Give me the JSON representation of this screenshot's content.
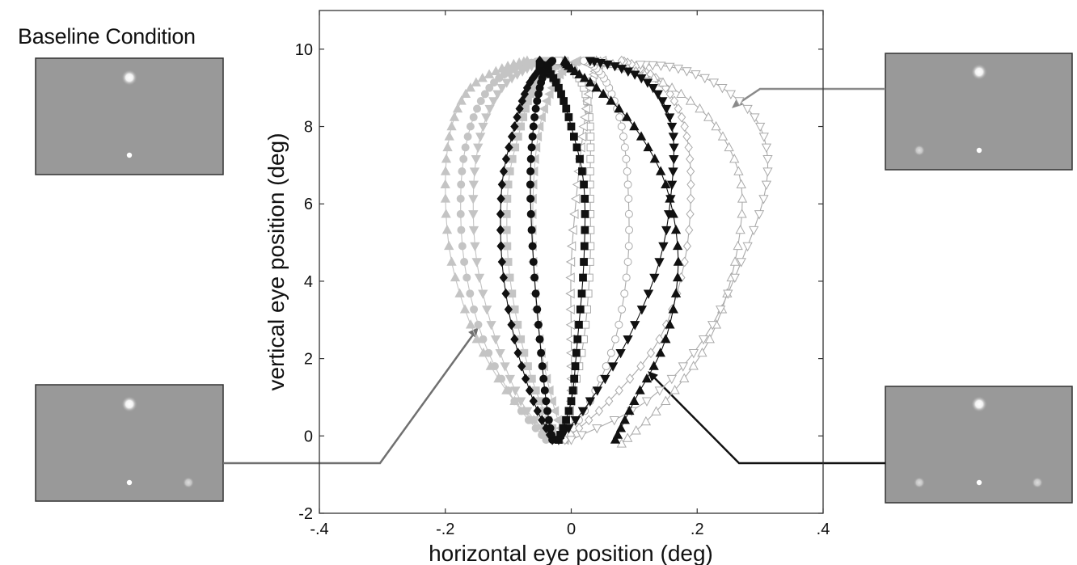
{
  "baseline_title": "Baseline Condition",
  "chart_data": {
    "type": "line",
    "title": "",
    "xlabel": "horizontal eye position (deg)",
    "ylabel": "vertical eye position (deg)",
    "xlim": [
      -0.4,
      0.4
    ],
    "ylim": [
      -2,
      11
    ],
    "xticks": [
      -0.4,
      -0.2,
      0,
      0.2,
      0.4
    ],
    "xtick_labels": [
      "-.4",
      "-.2",
      "0",
      ".2",
      ".4"
    ],
    "yticks": [
      -2,
      0,
      2,
      4,
      6,
      8,
      10
    ],
    "ytick_labels": [
      "-2",
      "0",
      "2",
      "4",
      "6",
      "8",
      "10"
    ],
    "grid": false,
    "series": [
      {
        "color": "#c4c4c4",
        "marker": "triangle-up",
        "fill": "filled",
        "x": [
          -0.02,
          -0.09,
          -0.15,
          -0.19,
          -0.2,
          -0.19,
          -0.16,
          -0.11,
          -0.07
        ],
        "y": [
          -0.1,
          0.9,
          2.5,
          4.5,
          6.5,
          8.0,
          9.0,
          9.5,
          9.7
        ]
      },
      {
        "color": "#c4c4c4",
        "marker": "circle",
        "fill": "filled",
        "x": [
          -0.04,
          -0.09,
          -0.14,
          -0.17,
          -0.175,
          -0.16,
          -0.13,
          -0.09,
          -0.05
        ],
        "y": [
          -0.1,
          0.9,
          2.5,
          4.5,
          6.5,
          8.0,
          9.0,
          9.5,
          9.7
        ]
      },
      {
        "color": "#c4c4c4",
        "marker": "triangle-down",
        "fill": "filled",
        "x": [
          -0.03,
          -0.08,
          -0.12,
          -0.15,
          -0.155,
          -0.14,
          -0.11,
          -0.07,
          -0.04
        ],
        "y": [
          -0.1,
          0.9,
          2.5,
          4.5,
          6.5,
          8.0,
          9.0,
          9.5,
          9.7
        ]
      },
      {
        "color": "#c4c4c4",
        "marker": "square",
        "fill": "filled",
        "x": [
          -0.02,
          -0.05,
          -0.08,
          -0.1,
          -0.1,
          -0.08,
          -0.06,
          -0.03,
          -0.01
        ],
        "y": [
          -0.1,
          0.9,
          2.5,
          4.5,
          6.5,
          8.0,
          9.0,
          9.5,
          9.7
        ]
      },
      {
        "color": "#c4c4c4",
        "marker": "triangle-left",
        "fill": "filled",
        "x": [
          -0.01,
          -0.03,
          -0.05,
          -0.06,
          -0.06,
          -0.05,
          -0.03,
          -0.01,
          0.01
        ],
        "y": [
          -0.1,
          0.9,
          2.5,
          4.5,
          6.5,
          8.0,
          9.0,
          9.5,
          9.7
        ]
      },
      {
        "color": "#111111",
        "marker": "diamond",
        "fill": "filled",
        "x": [
          -0.03,
          -0.06,
          -0.09,
          -0.11,
          -0.11,
          -0.09,
          -0.07,
          -0.05,
          -0.05
        ],
        "y": [
          -0.1,
          0.9,
          2.5,
          4.5,
          6.5,
          8.0,
          9.0,
          9.5,
          9.7
        ]
      },
      {
        "color": "#111111",
        "marker": "circle",
        "fill": "filled",
        "x": [
          -0.03,
          -0.04,
          -0.05,
          -0.06,
          -0.065,
          -0.06,
          -0.05,
          -0.04,
          -0.03
        ],
        "y": [
          -0.1,
          0.9,
          2.5,
          4.5,
          6.5,
          8.0,
          9.0,
          9.5,
          9.7
        ]
      },
      {
        "color": "#111111",
        "marker": "square",
        "fill": "filled",
        "x": [
          -0.02,
          0.0,
          0.01,
          0.02,
          0.02,
          0.0,
          -0.02,
          -0.04,
          -0.05
        ],
        "y": [
          -0.1,
          0.9,
          2.5,
          4.5,
          6.5,
          8.0,
          9.0,
          9.5,
          9.6
        ]
      },
      {
        "color": "#111111",
        "marker": "triangle-down",
        "fill": "filled",
        "x": [
          -0.02,
          0.03,
          0.09,
          0.14,
          0.16,
          0.16,
          0.13,
          0.08,
          0.03
        ],
        "y": [
          -0.1,
          0.9,
          2.5,
          4.5,
          6.5,
          8.0,
          9.0,
          9.5,
          9.7
        ]
      },
      {
        "color": "#111111",
        "marker": "triangle-up",
        "fill": "filled",
        "x": [
          0.07,
          0.1,
          0.15,
          0.17,
          0.15,
          0.1,
          0.04,
          0.0,
          -0.01
        ],
        "y": [
          -0.1,
          0.9,
          2.5,
          4.5,
          6.5,
          8.0,
          9.0,
          9.5,
          9.7
        ]
      },
      {
        "color": "#aaaaaa",
        "marker": "square",
        "fill": "open",
        "x": [
          -0.02,
          0.0,
          0.02,
          0.03,
          0.03,
          0.03,
          0.02,
          0.0,
          -0.02
        ],
        "y": [
          -0.1,
          0.9,
          2.5,
          4.5,
          6.5,
          8.0,
          9.0,
          9.5,
          9.7
        ]
      },
      {
        "color": "#aaaaaa",
        "marker": "triangle-left",
        "fill": "open",
        "x": [
          -0.01,
          0.0,
          0.0,
          0.0,
          0.01,
          0.02,
          0.03,
          0.04,
          0.05
        ],
        "y": [
          -0.1,
          0.9,
          2.5,
          4.5,
          6.5,
          8.0,
          9.0,
          9.5,
          9.7
        ]
      },
      {
        "color": "#aaaaaa",
        "marker": "circle",
        "fill": "open",
        "x": [
          -0.01,
          0.03,
          0.07,
          0.09,
          0.09,
          0.08,
          0.06,
          0.04,
          0.02
        ],
        "y": [
          -0.1,
          0.9,
          2.5,
          4.5,
          6.5,
          8.0,
          9.0,
          9.5,
          9.7
        ]
      },
      {
        "color": "#aaaaaa",
        "marker": "diamond",
        "fill": "open",
        "x": [
          -0.01,
          0.06,
          0.14,
          0.18,
          0.19,
          0.18,
          0.15,
          0.11,
          0.08
        ],
        "y": [
          -0.1,
          0.9,
          2.5,
          4.5,
          6.5,
          8.0,
          9.0,
          9.5,
          9.7
        ]
      },
      {
        "color": "#aaaaaa",
        "marker": "triangle-up",
        "fill": "open",
        "x": [
          0.08,
          0.15,
          0.22,
          0.26,
          0.27,
          0.23,
          0.16,
          0.09,
          0.04
        ],
        "y": [
          -0.2,
          0.9,
          2.5,
          4.5,
          6.5,
          8.0,
          9.0,
          9.5,
          9.7
        ]
      },
      {
        "color": "#aaaaaa",
        "marker": "triangle-down",
        "fill": "open",
        "x": [
          0.0,
          0.12,
          0.21,
          0.27,
          0.31,
          0.3,
          0.24,
          0.17,
          0.11
        ],
        "y": [
          -0.1,
          0.9,
          2.5,
          4.5,
          6.5,
          8.0,
          9.0,
          9.5,
          9.6
        ]
      }
    ]
  },
  "panels": [
    {
      "position": "top-left",
      "stimuli": [
        "target",
        "fixation"
      ]
    },
    {
      "position": "top-right",
      "stimuli": [
        "target",
        "left-distractor",
        "fixation"
      ]
    },
    {
      "position": "bottom-left",
      "stimuli": [
        "target",
        "fixation",
        "right-distractor"
      ]
    },
    {
      "position": "bottom-right",
      "stimuli": [
        "target",
        "left-distractor",
        "fixation",
        "right-distractor"
      ]
    }
  ],
  "colors": {
    "panel_bg": "#999999",
    "panel_border": "#333333",
    "arrow_gray": "#8a8a8a",
    "arrow_midgray": "#707070",
    "arrow_black": "#111111"
  }
}
